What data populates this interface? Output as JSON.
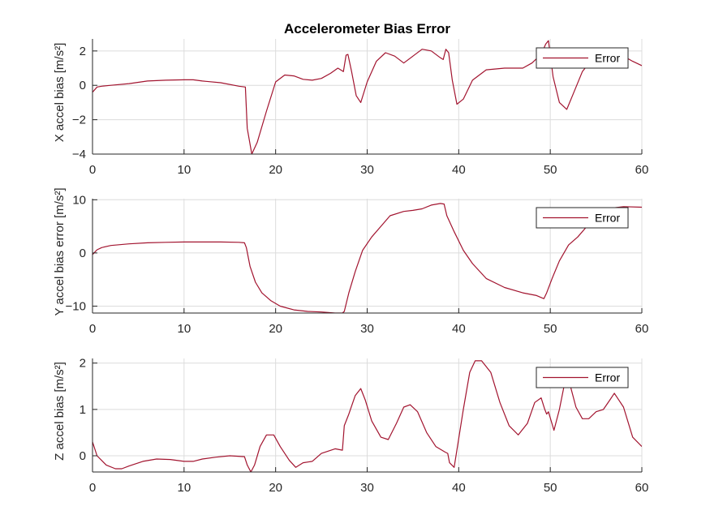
{
  "colors": {
    "series": "#A2142F",
    "grid": "#dcdcdc",
    "axis": "#262626"
  },
  "chart_data": [
    {
      "type": "line",
      "title": "Accelerometer Bias Error",
      "ylabel": "X accel bias [m/s²]",
      "xlim": [
        0,
        60
      ],
      "ylim": [
        -4,
        2.7
      ],
      "xticks": [
        0,
        10,
        20,
        30,
        40,
        50,
        60
      ],
      "yticks": [
        -4,
        -2,
        0,
        2
      ],
      "grid": true,
      "legend_position": "top-right",
      "series": [
        {
          "name": "Error",
          "x": [
            0,
            0.5,
            1,
            2,
            4,
            6,
            8,
            10,
            11,
            12,
            14,
            16,
            16.7,
            16.9,
            17.4,
            18,
            19,
            20,
            21,
            22,
            23,
            24,
            25,
            26,
            26.8,
            27.4,
            27.7,
            27.9,
            28.3,
            28.8,
            29.3,
            30,
            31,
            32,
            33,
            34,
            35,
            36,
            37,
            38,
            38.3,
            38.6,
            38.9,
            39.3,
            39.8,
            40.5,
            41.5,
            43,
            45,
            47,
            48,
            49,
            49.5,
            49.8,
            50.3,
            51,
            51.8,
            52.5,
            53.5,
            55,
            57,
            59,
            60
          ],
          "values": [
            -0.4,
            -0.1,
            -0.05,
            0,
            0.1,
            0.25,
            0.3,
            0.32,
            0.32,
            0.25,
            0.15,
            -0.05,
            -0.1,
            -2.5,
            -4.0,
            -3.3,
            -1.5,
            0.2,
            0.6,
            0.55,
            0.35,
            0.3,
            0.4,
            0.7,
            1.0,
            0.8,
            1.75,
            1.8,
            0.8,
            -0.6,
            -1.0,
            0.2,
            1.4,
            1.9,
            1.7,
            1.3,
            1.7,
            2.1,
            2.0,
            1.6,
            1.5,
            2.1,
            1.9,
            0.3,
            -1.1,
            -0.8,
            0.3,
            0.9,
            1.0,
            1.0,
            1.3,
            1.8,
            2.4,
            2.6,
            0.5,
            -1.0,
            -1.4,
            -0.5,
            0.8,
            1.8,
            2.0,
            1.4,
            1.15
          ]
        }
      ]
    },
    {
      "type": "line",
      "title": "",
      "ylabel": "Y accel bias error [m/s²]",
      "xlim": [
        0,
        60
      ],
      "ylim": [
        -11.3,
        10.2
      ],
      "xticks": [
        0,
        10,
        20,
        30,
        40,
        50,
        60
      ],
      "yticks": [
        -10,
        0,
        10
      ],
      "grid": true,
      "legend_position": "top-right",
      "series": [
        {
          "name": "Error",
          "x": [
            0,
            0.5,
            1,
            2,
            4,
            6,
            8,
            10,
            12,
            14,
            16,
            16.6,
            16.8,
            17.2,
            17.8,
            18.5,
            19.5,
            20.5,
            22,
            23.5,
            25,
            26.5,
            27.3,
            27.5,
            28,
            28.7,
            29.5,
            30.5,
            31.5,
            32.5,
            34,
            35,
            36,
            37,
            38,
            38.4,
            38.7,
            39.5,
            40.5,
            41.5,
            43,
            45,
            47,
            48.5,
            49.3,
            49.6,
            50.2,
            51,
            52,
            53,
            54,
            55,
            56,
            58,
            60
          ],
          "values": [
            -0.3,
            0.6,
            1.0,
            1.4,
            1.7,
            1.9,
            2.0,
            2.05,
            2.05,
            2.05,
            2.0,
            1.9,
            1.0,
            -2.5,
            -5.5,
            -7.5,
            -9.0,
            -10.0,
            -10.7,
            -11.0,
            -11.1,
            -11.3,
            -11.3,
            -11.0,
            -7.5,
            -3.5,
            0.5,
            3.0,
            5.0,
            7.0,
            7.8,
            8.0,
            8.3,
            9.0,
            9.3,
            9.2,
            7.0,
            4.0,
            0.5,
            -2.0,
            -4.8,
            -6.5,
            -7.5,
            -8.0,
            -8.6,
            -7.5,
            -4.8,
            -1.5,
            1.5,
            3.0,
            5.0,
            7.0,
            8.3,
            8.7,
            8.6
          ]
        }
      ]
    },
    {
      "type": "line",
      "title": "",
      "ylabel": "Z accel bias [m/s²]",
      "xlim": [
        0,
        60
      ],
      "ylim": [
        -0.35,
        2.1
      ],
      "xticks": [
        0,
        10,
        20,
        30,
        40,
        50,
        60
      ],
      "yticks": [
        0,
        1,
        2
      ],
      "grid": true,
      "legend_position": "top-right",
      "series": [
        {
          "name": "Error",
          "x": [
            0,
            0.5,
            1.5,
            2.5,
            3.2,
            4,
            5.5,
            7,
            8.5,
            10,
            11,
            12,
            13.5,
            15,
            16.6,
            16.9,
            17.3,
            17.7,
            18.3,
            19,
            19.8,
            20.5,
            21.5,
            22.2,
            23,
            24,
            25,
            26.5,
            27.3,
            27.5,
            28,
            28.7,
            29.3,
            29.8,
            30.5,
            31.5,
            32.3,
            33.2,
            34,
            34.7,
            35.5,
            36.5,
            37.5,
            38.5,
            38.8,
            39,
            39.5,
            40.5,
            41.2,
            41.8,
            42.5,
            43.5,
            44.5,
            45.5,
            46.5,
            47.5,
            48.3,
            49,
            49.4,
            49.6,
            49.8,
            50.4,
            51,
            51.5,
            52.2,
            52.8,
            53.5,
            54.2,
            55,
            55.8,
            56.5,
            57,
            58,
            59,
            60
          ],
          "values": [
            0.3,
            0.0,
            -0.2,
            -0.28,
            -0.28,
            -0.22,
            -0.12,
            -0.07,
            -0.08,
            -0.12,
            -0.12,
            -0.07,
            -0.03,
            0.0,
            -0.02,
            -0.2,
            -0.35,
            -0.2,
            0.2,
            0.45,
            0.45,
            0.2,
            -0.1,
            -0.25,
            -0.15,
            -0.12,
            0.05,
            0.15,
            0.12,
            0.65,
            0.9,
            1.3,
            1.45,
            1.2,
            0.75,
            0.4,
            0.35,
            0.7,
            1.05,
            1.1,
            0.95,
            0.5,
            0.2,
            0.08,
            0.05,
            -0.15,
            -0.25,
            1.0,
            1.8,
            2.05,
            2.05,
            1.8,
            1.15,
            0.65,
            0.45,
            0.7,
            1.15,
            1.25,
            1.0,
            0.9,
            0.95,
            0.55,
            1.0,
            1.5,
            1.5,
            1.05,
            0.8,
            0.8,
            0.95,
            1.0,
            1.2,
            1.35,
            1.05,
            0.4,
            0.2
          ]
        }
      ]
    }
  ]
}
